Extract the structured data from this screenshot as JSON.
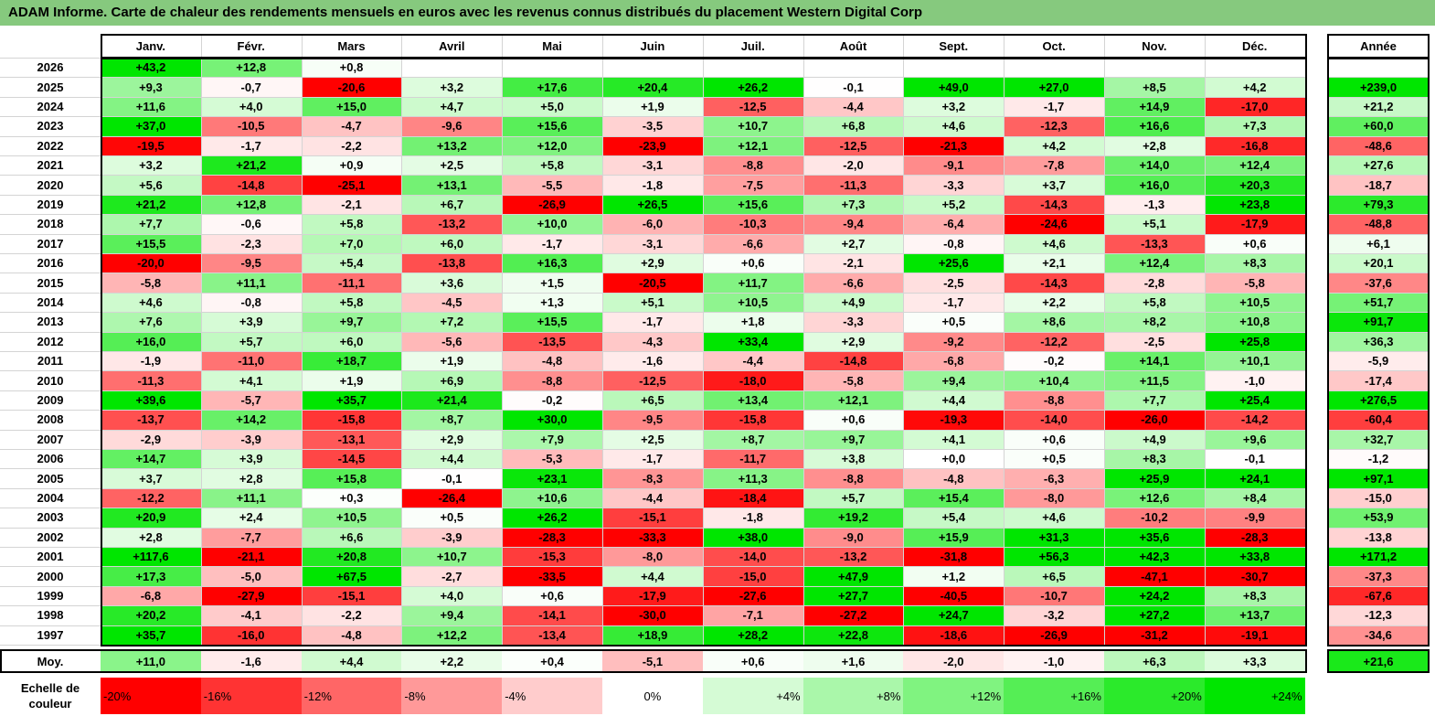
{
  "title": "ADAM Informe. Carte de chaleur des rendements mensuels en euros avec les revenus connus distribués du placement Western Digital Corp",
  "chart_data": {
    "type": "heatmap",
    "months": [
      "Janv.",
      "Févr.",
      "Mars",
      "Avril",
      "Mai",
      "Juin",
      "Juil.",
      "Août",
      "Sept.",
      "Oct.",
      "Nov.",
      "Déc."
    ],
    "year_header": "Année",
    "rows": [
      {
        "label": "2026",
        "values": [
          "+43,2",
          "+12,8",
          "+0,8",
          "",
          "",
          "",
          "",
          "",
          "",
          "",
          "",
          ""
        ],
        "year": ""
      },
      {
        "label": "2025",
        "values": [
          "+9,3",
          "-0,7",
          "-20,6",
          "+3,2",
          "+17,6",
          "+20,4",
          "+26,2",
          "-0,1",
          "+49,0",
          "+27,0",
          "+8,5",
          "+4,2"
        ],
        "year": "+239,0"
      },
      {
        "label": "2024",
        "values": [
          "+11,6",
          "+4,0",
          "+15,0",
          "+4,7",
          "+5,0",
          "+1,9",
          "-12,5",
          "-4,4",
          "+3,2",
          "-1,7",
          "+14,9",
          "-17,0"
        ],
        "year": "+21,2"
      },
      {
        "label": "2023",
        "values": [
          "+37,0",
          "-10,5",
          "-4,7",
          "-9,6",
          "+15,6",
          "-3,5",
          "+10,7",
          "+6,8",
          "+4,6",
          "-12,3",
          "+16,6",
          "+7,3"
        ],
        "year": "+60,0"
      },
      {
        "label": "2022",
        "values": [
          "-19,5",
          "-1,7",
          "-2,2",
          "+13,2",
          "+12,0",
          "-23,9",
          "+12,1",
          "-12,5",
          "-21,3",
          "+4,2",
          "+2,8",
          "-16,8"
        ],
        "year": "-48,6"
      },
      {
        "label": "2021",
        "values": [
          "+3,2",
          "+21,2",
          "+0,9",
          "+2,5",
          "+5,8",
          "-3,1",
          "-8,8",
          "-2,0",
          "-9,1",
          "-7,8",
          "+14,0",
          "+12,4"
        ],
        "year": "+27,6"
      },
      {
        "label": "2020",
        "values": [
          "+5,6",
          "-14,8",
          "-25,1",
          "+13,1",
          "-5,5",
          "-1,8",
          "-7,5",
          "-11,3",
          "-3,3",
          "+3,7",
          "+16,0",
          "+20,3"
        ],
        "year": "-18,7"
      },
      {
        "label": "2019",
        "values": [
          "+21,2",
          "+12,8",
          "-2,1",
          "+6,7",
          "-26,9",
          "+26,5",
          "+15,6",
          "+7,3",
          "+5,2",
          "-14,3",
          "-1,3",
          "+23,8"
        ],
        "year": "+79,3"
      },
      {
        "label": "2018",
        "values": [
          "+7,7",
          "-0,6",
          "+5,8",
          "-13,2",
          "+10,0",
          "-6,0",
          "-10,3",
          "-9,4",
          "-6,4",
          "-24,6",
          "+5,1",
          "-17,9"
        ],
        "year": "-48,8"
      },
      {
        "label": "2017",
        "values": [
          "+15,5",
          "-2,3",
          "+7,0",
          "+6,0",
          "-1,7",
          "-3,1",
          "-6,6",
          "+2,7",
          "-0,8",
          "+4,6",
          "-13,3",
          "+0,6"
        ],
        "year": "+6,1"
      },
      {
        "label": "2016",
        "values": [
          "-20,0",
          "-9,5",
          "+5,4",
          "-13,8",
          "+16,3",
          "+2,9",
          "+0,6",
          "-2,1",
          "+25,6",
          "+2,1",
          "+12,4",
          "+8,3"
        ],
        "year": "+20,1"
      },
      {
        "label": "2015",
        "values": [
          "-5,8",
          "+11,1",
          "-11,1",
          "+3,6",
          "+1,5",
          "-20,5",
          "+11,7",
          "-6,6",
          "-2,5",
          "-14,3",
          "-2,8",
          "-5,8"
        ],
        "year": "-37,6"
      },
      {
        "label": "2014",
        "values": [
          "+4,6",
          "-0,8",
          "+5,8",
          "-4,5",
          "+1,3",
          "+5,1",
          "+10,5",
          "+4,9",
          "-1,7",
          "+2,2",
          "+5,8",
          "+10,5"
        ],
        "year": "+51,7"
      },
      {
        "label": "2013",
        "values": [
          "+7,6",
          "+3,9",
          "+9,7",
          "+7,2",
          "+15,5",
          "-1,7",
          "+1,8",
          "-3,3",
          "+0,5",
          "+8,6",
          "+8,2",
          "+10,8"
        ],
        "year": "+91,7"
      },
      {
        "label": "2012",
        "values": [
          "+16,0",
          "+5,7",
          "+6,0",
          "-5,6",
          "-13,5",
          "-4,3",
          "+33,4",
          "+2,9",
          "-9,2",
          "-12,2",
          "-2,5",
          "+25,8"
        ],
        "year": "+36,3"
      },
      {
        "label": "2011",
        "values": [
          "-1,9",
          "-11,0",
          "+18,7",
          "+1,9",
          "-4,8",
          "-1,6",
          "-4,4",
          "-14,8",
          "-6,8",
          "-0,2",
          "+14,1",
          "+10,1"
        ],
        "year": "-5,9"
      },
      {
        "label": "2010",
        "values": [
          "-11,3",
          "+4,1",
          "+1,9",
          "+6,9",
          "-8,8",
          "-12,5",
          "-18,0",
          "-5,8",
          "+9,4",
          "+10,4",
          "+11,5",
          "-1,0"
        ],
        "year": "-17,4"
      },
      {
        "label": "2009",
        "values": [
          "+39,6",
          "-5,7",
          "+35,7",
          "+21,4",
          "-0,2",
          "+6,5",
          "+13,4",
          "+12,1",
          "+4,4",
          "-8,8",
          "+7,7",
          "+25,4"
        ],
        "year": "+276,5"
      },
      {
        "label": "2008",
        "values": [
          "-13,7",
          "+14,2",
          "-15,8",
          "+8,7",
          "+30,0",
          "-9,5",
          "-15,8",
          "+0,6",
          "-19,3",
          "-14,0",
          "-26,0",
          "-14,2"
        ],
        "year": "-60,4"
      },
      {
        "label": "2007",
        "values": [
          "-2,9",
          "-3,9",
          "-13,1",
          "+2,9",
          "+7,9",
          "+2,5",
          "+8,7",
          "+9,7",
          "+4,1",
          "+0,6",
          "+4,9",
          "+9,6"
        ],
        "year": "+32,7"
      },
      {
        "label": "2006",
        "values": [
          "+14,7",
          "+3,9",
          "-14,5",
          "+4,4",
          "-5,3",
          "-1,7",
          "-11,7",
          "+3,8",
          "+0,0",
          "+0,5",
          "+8,3",
          "-0,1"
        ],
        "year": "-1,2"
      },
      {
        "label": "2005",
        "values": [
          "+3,7",
          "+2,8",
          "+15,8",
          "-0,1",
          "+23,1",
          "-8,3",
          "+11,3",
          "-8,8",
          "-4,8",
          "-6,3",
          "+25,9",
          "+24,1"
        ],
        "year": "+97,1"
      },
      {
        "label": "2004",
        "values": [
          "-12,2",
          "+11,1",
          "+0,3",
          "-26,4",
          "+10,6",
          "-4,4",
          "-18,4",
          "+5,7",
          "+15,4",
          "-8,0",
          "+12,6",
          "+8,4"
        ],
        "year": "-15,0"
      },
      {
        "label": "2003",
        "values": [
          "+20,9",
          "+2,4",
          "+10,5",
          "+0,5",
          "+26,2",
          "-15,1",
          "-1,8",
          "+19,2",
          "+5,4",
          "+4,6",
          "-10,2",
          "-9,9"
        ],
        "year": "+53,9"
      },
      {
        "label": "2002",
        "values": [
          "+2,8",
          "-7,7",
          "+6,6",
          "-3,9",
          "-28,3",
          "-33,3",
          "+38,0",
          "-9,0",
          "+15,9",
          "+31,3",
          "+35,6",
          "-28,3"
        ],
        "year": "-13,8"
      },
      {
        "label": "2001",
        "values": [
          "+117,6",
          "-21,1",
          "+20,8",
          "+10,7",
          "-15,3",
          "-8,0",
          "-14,0",
          "-13,2",
          "-31,8",
          "+56,3",
          "+42,3",
          "+33,8"
        ],
        "year": "+171,2"
      },
      {
        "label": "2000",
        "values": [
          "+17,3",
          "-5,0",
          "+67,5",
          "-2,7",
          "-33,5",
          "+4,4",
          "-15,0",
          "+47,9",
          "+1,2",
          "+6,5",
          "-47,1",
          "-30,7"
        ],
        "year": "-37,3"
      },
      {
        "label": "1999",
        "values": [
          "-6,8",
          "-27,9",
          "-15,1",
          "+4,0",
          "+0,6",
          "-17,9",
          "-27,6",
          "+27,7",
          "-40,5",
          "-10,7",
          "+24,2",
          "+8,3"
        ],
        "year": "-67,6"
      },
      {
        "label": "1998",
        "values": [
          "+20,2",
          "-4,1",
          "-2,2",
          "+9,4",
          "-14,1",
          "-30,0",
          "-7,1",
          "-27,2",
          "+24,7",
          "-3,2",
          "+27,2",
          "+13,7"
        ],
        "year": "-12,3"
      },
      {
        "label": "1997",
        "values": [
          "+35,7",
          "-16,0",
          "-4,8",
          "+12,2",
          "-13,4",
          "+18,9",
          "+28,2",
          "+22,8",
          "-18,6",
          "-26,9",
          "-31,2",
          "-19,1"
        ],
        "year": "-34,6"
      }
    ],
    "average": {
      "label": "Moy.",
      "values": [
        "+11,0",
        "-1,6",
        "+4,4",
        "+2,2",
        "+0,4",
        "-5,1",
        "+0,6",
        "+1,6",
        "-2,0",
        "-1,0",
        "+6,3",
        "+3,3"
      ],
      "year": "+21,6"
    },
    "scale": {
      "label": "Echelle de couleur",
      "items": [
        {
          "text": "-20%",
          "value": -20
        },
        {
          "text": "-16%",
          "value": -16
        },
        {
          "text": "-12%",
          "value": -12
        },
        {
          "text": "-8%",
          "value": -8
        },
        {
          "text": "-4%",
          "value": -4
        },
        {
          "text": "0%",
          "value": 0
        },
        {
          "text": "+4%",
          "value": 4
        },
        {
          "text": "+8%",
          "value": 8
        },
        {
          "text": "+12%",
          "value": 12
        },
        {
          "text": "+16%",
          "value": 16
        },
        {
          "text": "+20%",
          "value": 20
        },
        {
          "text": "+24%",
          "value": 24
        }
      ]
    },
    "colors": {
      "negative": "#ff0000",
      "neutral": "#ffffff",
      "positive": "#00e600",
      "title_bar": "#86c97e"
    }
  }
}
